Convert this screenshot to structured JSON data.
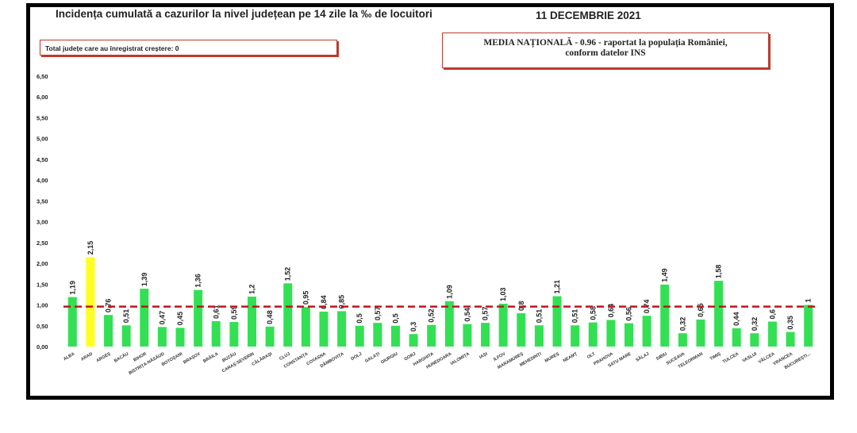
{
  "header": {
    "title": "Incidența cumulată a cazurilor la nivel județean pe 14 zile la ‰ de locuitori",
    "date": "11 DECEMBRIE 2021"
  },
  "growth_note": "Total județe care au înregistrat creștere: 0",
  "media": {
    "line1": "MEDIA NAȚIONALĂ  - 0.96 -  raportat la populația României,",
    "line2": "conform datelor INS"
  },
  "colors": {
    "bar": "#33e053",
    "highlight": "#ffff22",
    "reference": "#c0141c",
    "frame": "#000000"
  },
  "chart_data": {
    "type": "bar",
    "title": "Incidența cumulată a cazurilor la nivel județean pe 14 zile la ‰ de locuitori",
    "xlabel": "",
    "ylabel": "",
    "ylim": [
      0,
      6.5
    ],
    "yticks": [
      "0,00",
      "0,50",
      "1,00",
      "1,50",
      "2,00",
      "2,50",
      "3,00",
      "3,50",
      "4,00",
      "4,50",
      "5,00",
      "5,50",
      "6,00",
      "6,50"
    ],
    "reference_line": 0.96,
    "highlight_index": 1,
    "categories": [
      "ALBA",
      "ARAD",
      "ARGEȘ",
      "BACĂU",
      "BIHOR",
      "BISTRIȚA-NĂSĂUD",
      "BOTOȘANI",
      "BRAȘOV",
      "BRĂILA",
      "BUZĂU",
      "CARAȘ-SEVERIN",
      "CĂLĂRAȘI",
      "CLUJ",
      "CONSTANȚA",
      "COVASNA",
      "DÂMBOVIȚA",
      "DOLJ",
      "GALAȚI",
      "GIURGIU",
      "GORJ",
      "HARGHITA",
      "HUNEDOARA",
      "IALOMIȚA",
      "IAȘI",
      "ILFOV",
      "MARAMUREȘ",
      "MEHEDINȚI",
      "MUREȘ",
      "NEAMȚ",
      "OLT",
      "PRAHOVA",
      "SATU MARE",
      "SĂLAJ",
      "SIBIU",
      "SUCEAVA",
      "TELEORMAN",
      "TIMIȘ",
      "TULCEA",
      "VASLUI",
      "VÂLCEA",
      "VRANCEA",
      "BUCUREȘTI..."
    ],
    "values": [
      1.19,
      2.15,
      0.76,
      0.51,
      1.39,
      0.47,
      0.45,
      1.36,
      0.61,
      0.59,
      1.2,
      0.48,
      1.52,
      0.95,
      0.84,
      0.85,
      0.5,
      0.57,
      0.5,
      0.3,
      0.52,
      1.09,
      0.54,
      0.57,
      1.03,
      0.8,
      0.51,
      1.21,
      0.51,
      0.58,
      0.64,
      0.56,
      0.74,
      1.49,
      0.32,
      0.65,
      1.58,
      0.44,
      0.32,
      0.6,
      0.35,
      1
    ],
    "labels": [
      "1,19",
      "2,15",
      "0,76",
      "0,51",
      "1,39",
      "0,47",
      "0,45",
      "1,36",
      "0,61",
      "0,59",
      "1,2",
      "0,48",
      "1,52",
      "0,95",
      "0,84",
      "0,85",
      "0,5",
      "0,57",
      "0,5",
      "0,3",
      "0,52",
      "1,09",
      "0,54",
      "0,57",
      "1,03",
      "0,8",
      "0,51",
      "1,21",
      "0,51",
      "0,58",
      "0,64",
      "0,56",
      "0,74",
      "1,49",
      "0,32",
      "0,65",
      "1,58",
      "0,44",
      "0,32",
      "0,6",
      "0,35",
      "1"
    ]
  }
}
